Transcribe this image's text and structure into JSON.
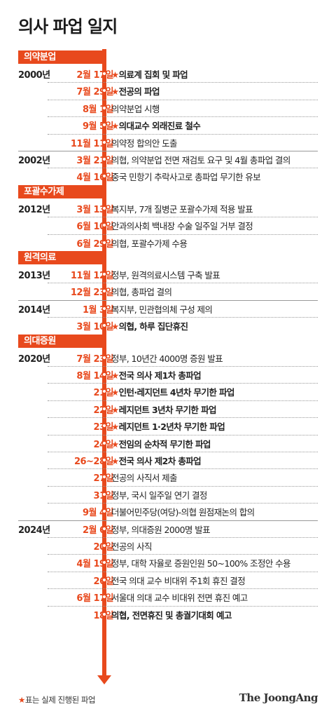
{
  "title": "의사 파업 일지",
  "star_symbol": "★",
  "accent_color": "#e8491d",
  "sections": [
    {
      "label": "의약분업",
      "before_row": 0
    },
    {
      "label": "포괄수가제",
      "before_row": 7
    },
    {
      "label": "원격의료",
      "before_row": 10
    },
    {
      "label": "의대증원",
      "before_row": 14
    }
  ],
  "rows": [
    {
      "year": "2000년",
      "date": "2월 17일",
      "text": "의료계 집회 및 파업",
      "strike": true
    },
    {
      "year": "",
      "date": "7월 29일",
      "text": "전공의 파업",
      "strike": true
    },
    {
      "year": "",
      "date": "8월 1일",
      "text": "의약분업 시행",
      "strike": false
    },
    {
      "year": "",
      "date": "9월 5일",
      "text": "의대교수 외래진료 철수",
      "strike": true
    },
    {
      "year": "",
      "date": "11월 11일",
      "text": "의약정 합의안 도출",
      "strike": false
    },
    {
      "year": "2002년",
      "date": "3월 21일",
      "text": "의협, 의약분업 전면 재검토 요구 및 4월 총파업 결의",
      "strike": false
    },
    {
      "year": "",
      "date": "4월 16일",
      "text": "중국 민항기 추락사고로 총파업 무기한 유보",
      "strike": false
    },
    {
      "year": "2012년",
      "date": "3월 13일",
      "text": "복지부, 7개 질병군 포괄수가제 적용 발표",
      "strike": false
    },
    {
      "year": "",
      "date": "6월 10일",
      "text": "안과의사회 백내장 수술 일주일 거부 결정",
      "strike": false
    },
    {
      "year": "",
      "date": "6월 29일",
      "text": "의협, 포괄수가제 수용",
      "strike": false
    },
    {
      "year": "2013년",
      "date": "11월 12일",
      "text": "정부, 원격의료시스템 구축 발표",
      "strike": false
    },
    {
      "year": "",
      "date": "12월 23일",
      "text": "의협, 총파업 결의",
      "strike": false
    },
    {
      "year": "2014년",
      "date": "1월 3일",
      "text": "복지부, 민관협의체 구성 제의",
      "strike": false
    },
    {
      "year": "",
      "date": "3월 10일",
      "text": "의협, 하루 집단휴진",
      "strike": true
    },
    {
      "year": "2020년",
      "date": "7월 23일",
      "text": "정부, 10년간 4000명 증원 발표",
      "strike": false
    },
    {
      "year": "",
      "date": "8월 14일",
      "text": "전국 의사 제1차 총파업",
      "strike": true
    },
    {
      "year": "",
      "date": "21일",
      "text": "인턴·레지던트 4년차 무기한 파업",
      "strike": true
    },
    {
      "year": "",
      "date": "22일",
      "text": "레지던트 3년차 무기한 파업",
      "strike": true
    },
    {
      "year": "",
      "date": "23일",
      "text": "레지던트 1·2년차 무기한 파업",
      "strike": true
    },
    {
      "year": "",
      "date": "24일",
      "text": "전임의 순차적 무기한 파업",
      "strike": true
    },
    {
      "year": "",
      "date": "26~28일",
      "text": "전국 의사 제2차 총파업",
      "strike": true
    },
    {
      "year": "",
      "date": "27일",
      "text": "전공의 사직서 제출",
      "strike": false
    },
    {
      "year": "",
      "date": "31일",
      "text": "정부, 국시 일주일 연기 결정",
      "strike": false
    },
    {
      "year": "",
      "date": "9월 4일",
      "text": "더불어민주당(여당)-의협 원점재논의 합의",
      "strike": false
    },
    {
      "year": "2024년",
      "date": "2월 6일",
      "text": "정부, 의대증원 2000명 발표",
      "strike": false
    },
    {
      "year": "",
      "date": "20일",
      "text": "전공의 사직",
      "strike": false
    },
    {
      "year": "",
      "date": "4월 19일",
      "text": "정부, 대학 자율로 증원인원 50~100% 조정안 수용",
      "strike": false
    },
    {
      "year": "",
      "date": "26일",
      "text": "전국 의대 교수 비대위 주1회 휴진 결정",
      "strike": false
    },
    {
      "year": "",
      "date": "6월 17일",
      "text": "서울대 의대 교수 비대위 전면 휴진 예고",
      "strike": false
    },
    {
      "year": "",
      "date": "18일",
      "text": "의협, 전면휴진 및 총궐기대회 예고",
      "strike": false,
      "bold": true
    }
  ],
  "footnote": {
    "star": "★",
    "text": "표는 실제 진행된 파업"
  },
  "logo": "The JoongAng"
}
